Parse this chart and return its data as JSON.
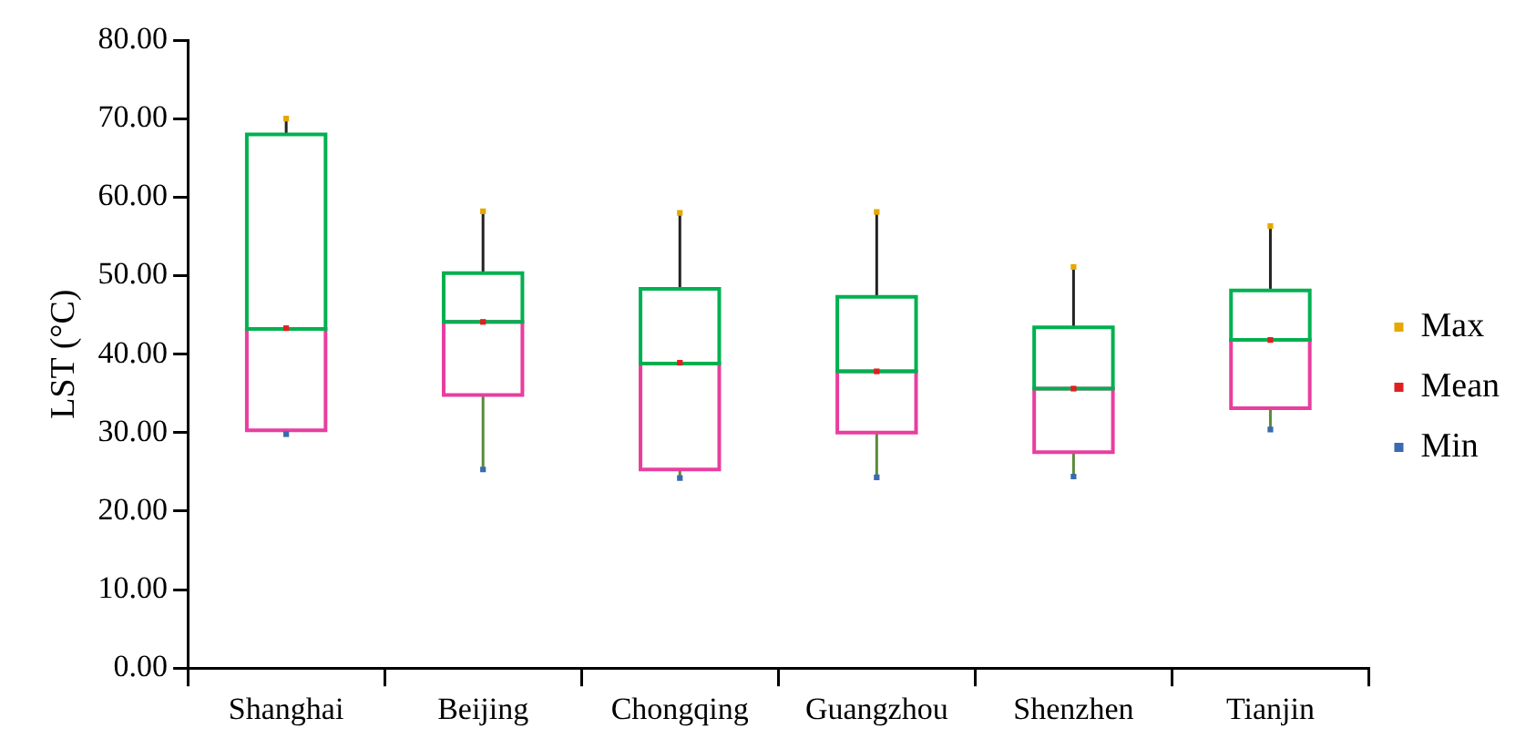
{
  "chart_data": {
    "type": "box",
    "ylabel": "LST (°C)",
    "categories": [
      "Shanghai",
      "Beijing",
      "Chongqing",
      "Guangzhou",
      "Shenzhen",
      "Tianjin"
    ],
    "ylim": [
      0,
      80
    ],
    "yticks": [
      {
        "value": 0,
        "label": "0.00"
      },
      {
        "value": 10,
        "label": "10.00"
      },
      {
        "value": 20,
        "label": "20.00"
      },
      {
        "value": 30,
        "label": "30.00"
      },
      {
        "value": 40,
        "label": "40.00"
      },
      {
        "value": 50,
        "label": "50.00"
      },
      {
        "value": 60,
        "label": "60.00"
      },
      {
        "value": 70,
        "label": "70.00"
      },
      {
        "value": 80,
        "label": "80.00"
      }
    ],
    "grid": false,
    "legend": "right",
    "series": [
      {
        "type": "box",
        "color": "#00b050",
        "colors": [
          "#e83e9f",
          "#e83e9f",
          "#e83e9f",
          "#e83e9f",
          "#e83e9f",
          "#e83e9f"
        ],
        "boxes": [
          {
            "low": 29.8,
            "q1": 30.3,
            "median": 43.2,
            "q3": 68,
            "high": 70
          },
          {
            "low": 25.3,
            "q1": 34.8,
            "median": 44.1,
            "q3": 50.3,
            "high": 58.2
          },
          {
            "low": 24.2,
            "q1": 25.3,
            "median": 38.8,
            "q3": 48.3,
            "high": 58
          },
          {
            "low": 24.3,
            "q1": 30,
            "median": 37.8,
            "q3": 47.3,
            "high": 58.1
          },
          {
            "low": 24.4,
            "q1": 27.5,
            "median": 35.6,
            "q3": 43.4,
            "high": 51.1
          },
          {
            "low": 30.4,
            "q1": 33.1,
            "median": 41.8,
            "q3": 48.1,
            "high": 56.3
          }
        ]
      },
      {
        "type": "scatter",
        "name": "Max",
        "color": "#e6a800",
        "values": [
          70,
          58.2,
          58,
          58.1,
          51.1,
          56.3
        ]
      },
      {
        "type": "scatter",
        "name": "Mean",
        "color": "#e02020",
        "values": [
          43.3,
          44.1,
          38.9,
          37.8,
          35.6,
          41.8
        ]
      },
      {
        "type": "scatter",
        "name": "Min",
        "color": "#3a6ab0",
        "values": [
          29.8,
          25.3,
          24.2,
          24.3,
          24.4,
          30.4
        ]
      }
    ]
  }
}
